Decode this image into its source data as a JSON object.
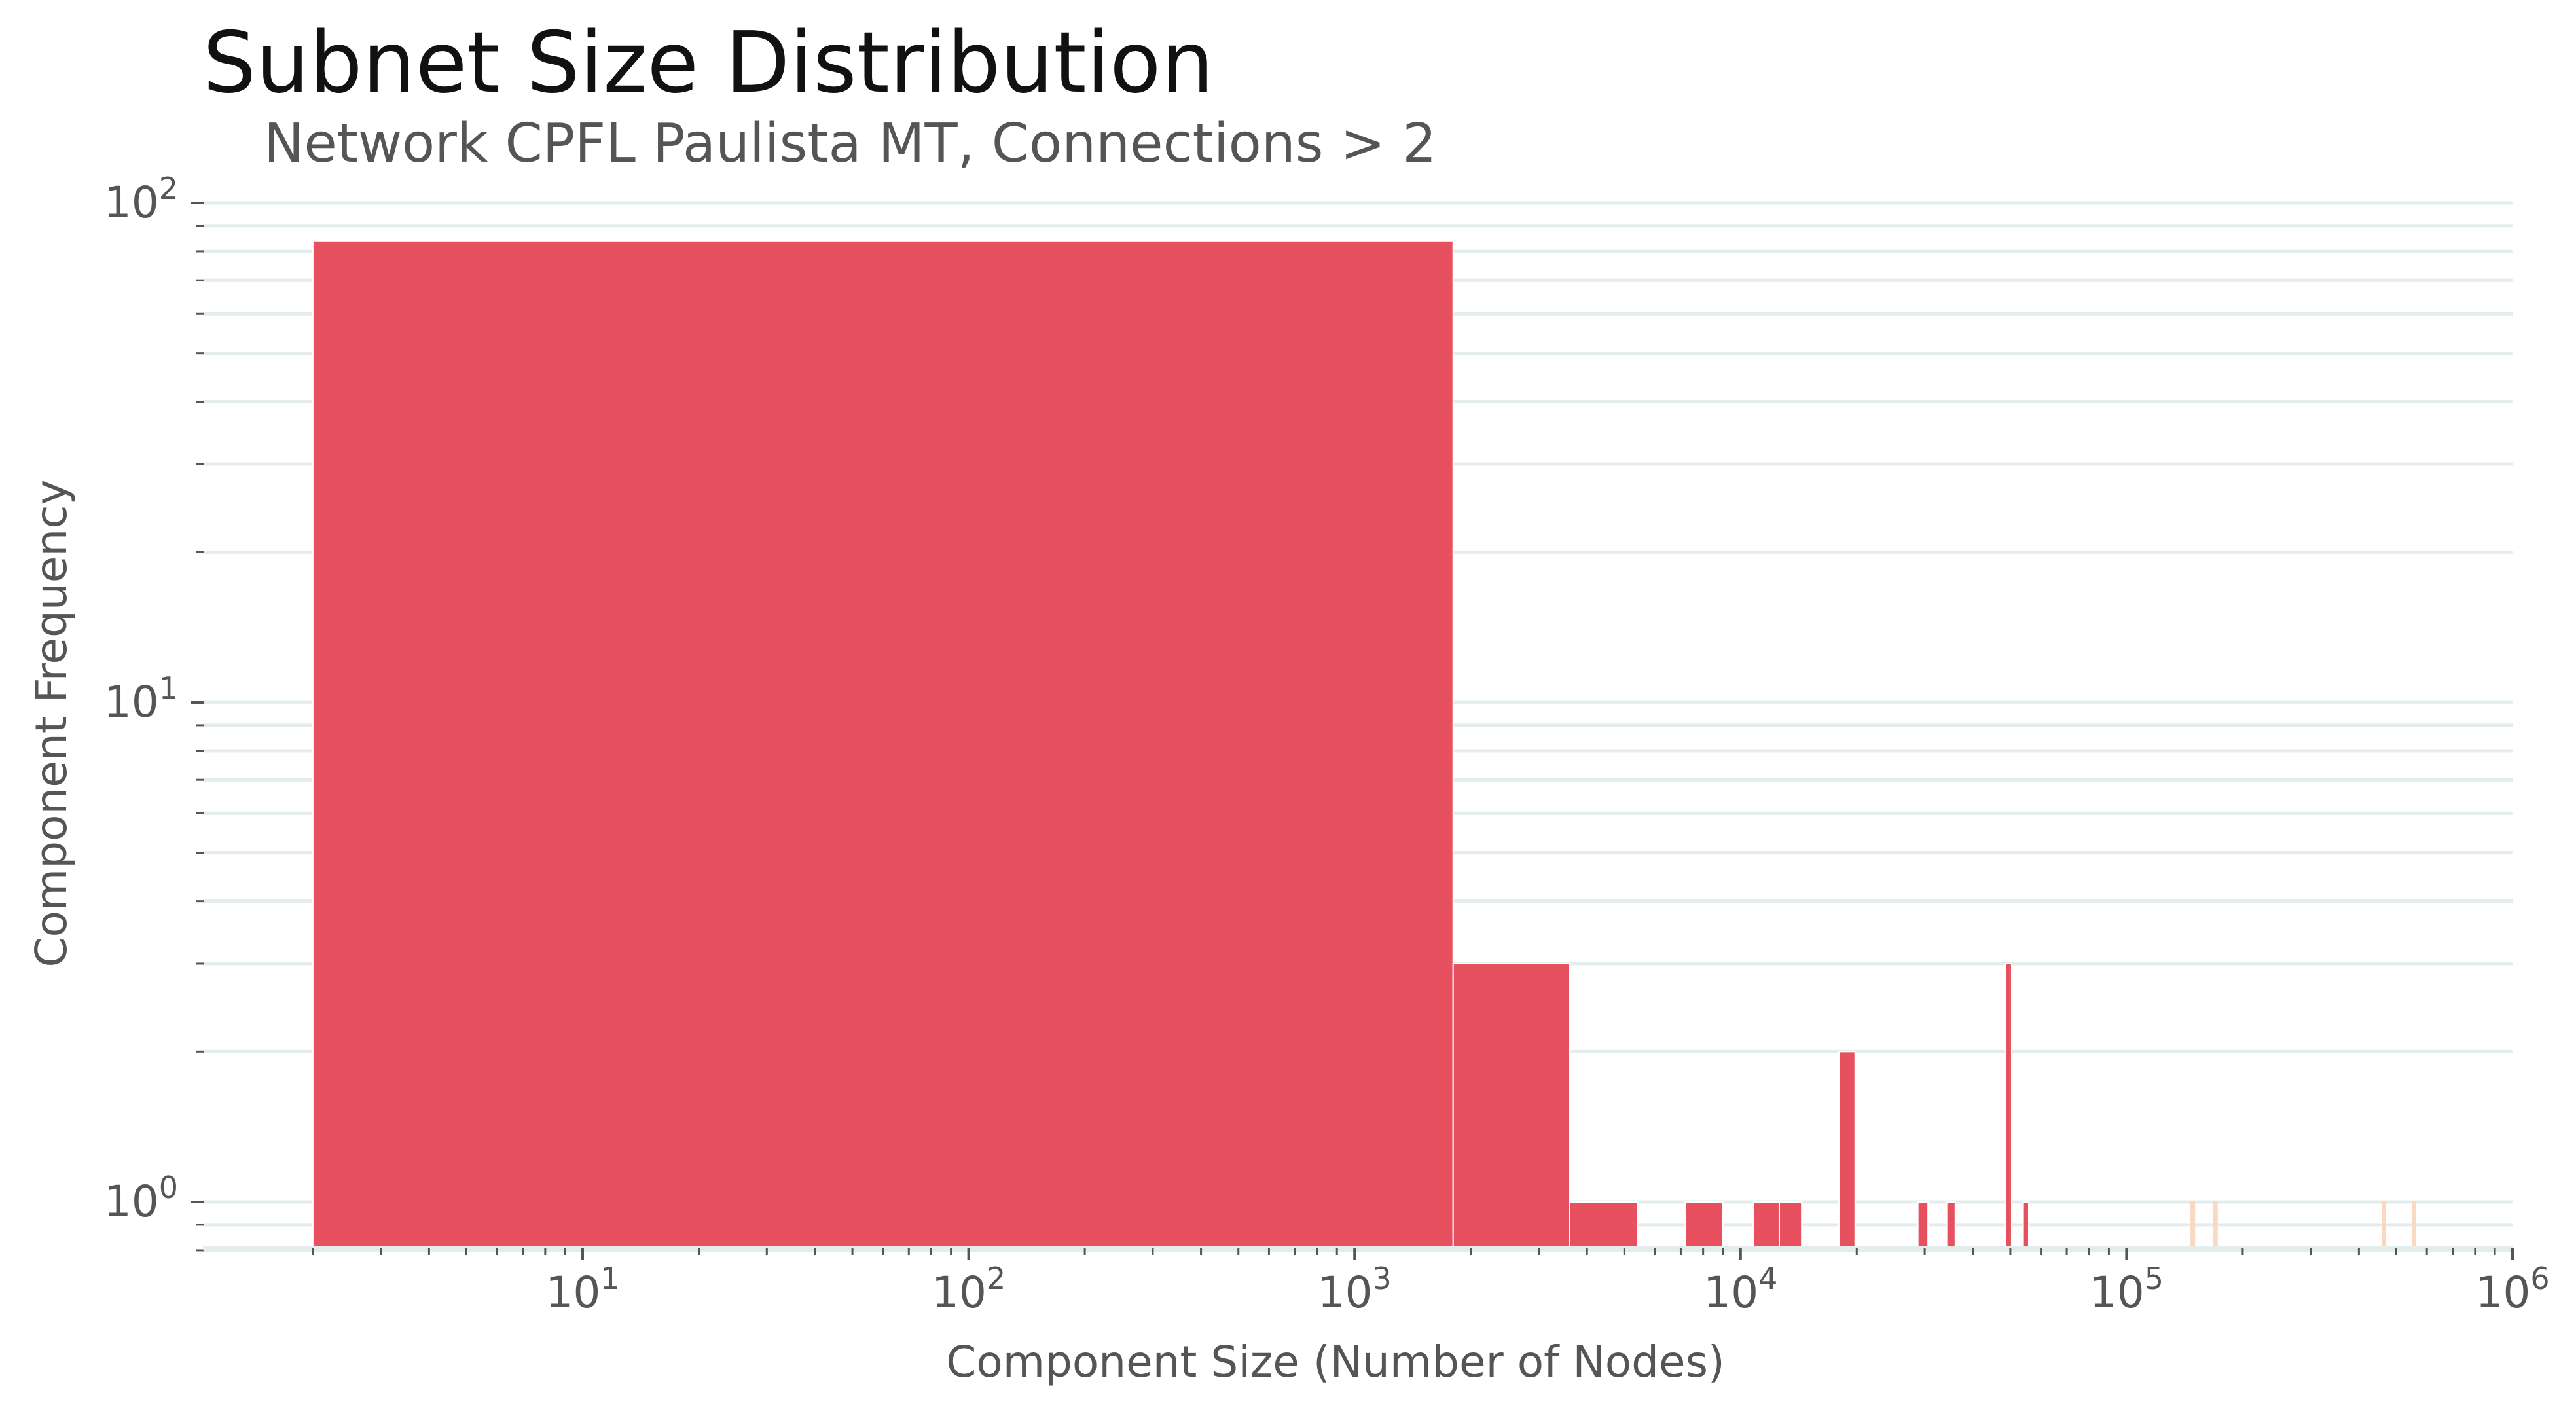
{
  "chart_data": {
    "type": "bar",
    "title": "Subnet Size Distribution",
    "subtitle": "Network CPFL Paulista MT, Connections > 2",
    "xlabel": "Component Size (Number of Nodes)",
    "ylabel": "Component Frequency",
    "x_scale": "log",
    "y_scale": "log",
    "xlim": [
      2,
      1000000
    ],
    "ylim": [
      0.8,
      100
    ],
    "x_ticks": [
      {
        "base": "10",
        "exp": "1",
        "value": 10
      },
      {
        "base": "10",
        "exp": "2",
        "value": 100
      },
      {
        "base": "10",
        "exp": "3",
        "value": 1000
      },
      {
        "base": "10",
        "exp": "4",
        "value": 10000
      },
      {
        "base": "10",
        "exp": "5",
        "value": 100000
      },
      {
        "base": "10",
        "exp": "6",
        "value": 1000000
      }
    ],
    "y_ticks": [
      {
        "base": "10",
        "exp": "0",
        "value": 1
      },
      {
        "base": "10",
        "exp": "1",
        "value": 10
      },
      {
        "base": "10",
        "exp": "2",
        "value": 100
      }
    ],
    "grid": true,
    "bar_color": "#e6505f",
    "faint_bar_color": "#f9d9bf",
    "grid_color": "#e3eeec",
    "bins": [
      {
        "x0": 2,
        "x1": 1800,
        "count": 84
      },
      {
        "x0": 1800,
        "x1": 3600,
        "count": 3
      },
      {
        "x0": 3600,
        "x1": 5400,
        "count": 1
      },
      {
        "x0": 7200,
        "x1": 9000,
        "count": 1
      },
      {
        "x0": 10800,
        "x1": 12600,
        "count": 1
      },
      {
        "x0": 12600,
        "x1": 14400,
        "count": 1
      },
      {
        "x0": 18000,
        "x1": 19800,
        "count": 2
      },
      {
        "x0": 28800,
        "x1": 30600,
        "count": 1
      },
      {
        "x0": 34200,
        "x1": 36000,
        "count": 1
      },
      {
        "x0": 48600,
        "x1": 50400,
        "count": 3
      },
      {
        "x0": 54000,
        "x1": 55800,
        "count": 1
      }
    ],
    "faint_bins": [
      {
        "x0": 147600,
        "x1": 149400,
        "count": 1
      },
      {
        "x0": 169200,
        "x1": 171000,
        "count": 1
      },
      {
        "x0": 462600,
        "x1": 464400,
        "count": 1
      },
      {
        "x0": 554400,
        "x1": 556200,
        "count": 1
      }
    ]
  }
}
